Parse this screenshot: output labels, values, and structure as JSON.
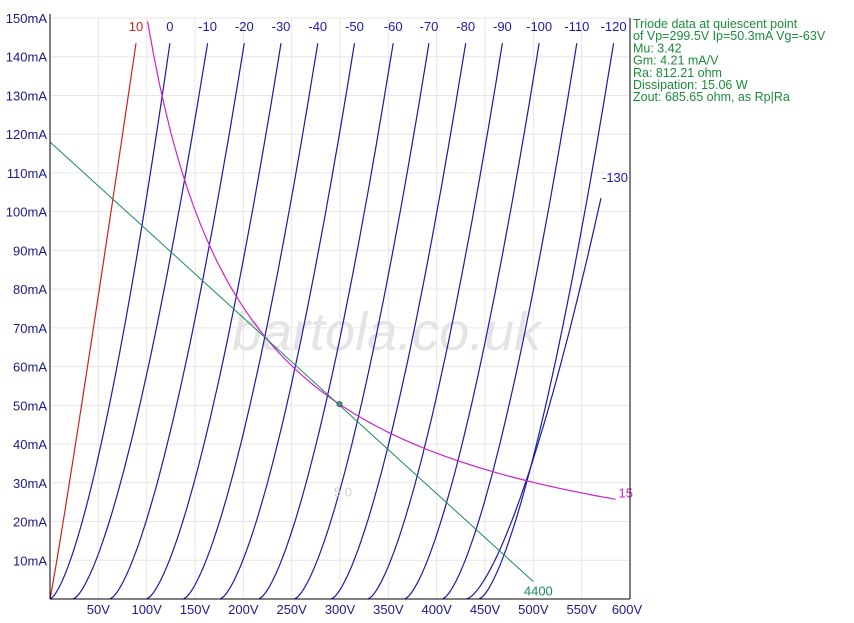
{
  "chart_data": {
    "type": "line",
    "xlabel": "",
    "ylabel": "",
    "xlim": [
      0,
      600
    ],
    "ylim": [
      0,
      150
    ],
    "grid": true,
    "x_ticks": [
      {
        "v": 50,
        "label": "50V"
      },
      {
        "v": 100,
        "label": "100V"
      },
      {
        "v": 150,
        "label": "150V"
      },
      {
        "v": 200,
        "label": "200V"
      },
      {
        "v": 250,
        "label": "250V"
      },
      {
        "v": 300,
        "label": "300V"
      },
      {
        "v": 350,
        "label": "350V"
      },
      {
        "v": 400,
        "label": "400V"
      },
      {
        "v": 450,
        "label": "450V"
      },
      {
        "v": 500,
        "label": "500V"
      },
      {
        "v": 550,
        "label": "550V"
      },
      {
        "v": 600,
        "label": "600V"
      }
    ],
    "y_ticks": [
      {
        "v": 10,
        "label": "10mA"
      },
      {
        "v": 20,
        "label": "20mA"
      },
      {
        "v": 30,
        "label": "30mA"
      },
      {
        "v": 40,
        "label": "40mA"
      },
      {
        "v": 50,
        "label": "50mA"
      },
      {
        "v": 60,
        "label": "60mA"
      },
      {
        "v": 70,
        "label": "70mA"
      },
      {
        "v": 80,
        "label": "80mA"
      },
      {
        "v": 90,
        "label": "90mA"
      },
      {
        "v": 100,
        "label": "100mA"
      },
      {
        "v": 110,
        "label": "110mA"
      },
      {
        "v": 120,
        "label": "120mA"
      },
      {
        "v": 130,
        "label": "130mA"
      },
      {
        "v": 140,
        "label": "140mA"
      },
      {
        "v": 150,
        "label": "150mA"
      }
    ],
    "grid_curves": [
      {
        "label": "10",
        "color": "#cc2222",
        "top_ip": 143.5,
        "top_vp": 89
      },
      {
        "label": "0",
        "color": "#1a1aa8",
        "top_ip": 143.5,
        "top_vp": 124
      },
      {
        "label": "-10",
        "color": "#1a1aa8",
        "top_ip": 143.5,
        "top_vp": 163
      },
      {
        "label": "-20",
        "color": "#1a1aa8",
        "top_ip": 143.5,
        "top_vp": 201
      },
      {
        "label": "-30",
        "color": "#1a1aa8",
        "top_ip": 143.5,
        "top_vp": 239
      },
      {
        "label": "-40",
        "color": "#1a1aa8",
        "top_ip": 143.5,
        "top_vp": 277
      },
      {
        "label": "-50",
        "color": "#1a1aa8",
        "top_ip": 143.5,
        "top_vp": 315
      },
      {
        "label": "-60",
        "color": "#1a1aa8",
        "top_ip": 143.5,
        "top_vp": 355
      },
      {
        "label": "-70",
        "color": "#1a1aa8",
        "top_ip": 143.5,
        "top_vp": 392
      },
      {
        "label": "-80",
        "color": "#1a1aa8",
        "top_ip": 143.5,
        "top_vp": 430
      },
      {
        "label": "-90",
        "color": "#1a1aa8",
        "top_ip": 143.5,
        "top_vp": 468
      },
      {
        "label": "-100",
        "color": "#1a1aa8",
        "top_ip": 143.5,
        "top_vp": 506
      },
      {
        "label": "-110",
        "color": "#1a1aa8",
        "top_ip": 143.5,
        "top_vp": 545
      },
      {
        "label": "-120",
        "color": "#1a1aa8",
        "top_ip": 143.5,
        "top_vp": 583
      },
      {
        "label": "-130",
        "color": "#1a1aa8",
        "top_ip": 103.5,
        "top_vp": 570
      }
    ],
    "max_dissipation": {
      "label": "15",
      "color": "#cc22cc",
      "watts": 15.06,
      "x_range": [
        101,
        585
      ]
    },
    "load_line": {
      "label": "4400",
      "color": "#1a8c5a",
      "points": [
        [
          0,
          118
        ],
        [
          500,
          4.5
        ]
      ]
    },
    "load_line_secondary_label": "5 0",
    "quiescent_point": {
      "vp": 299.5,
      "ip": 50.3
    },
    "info_lines": [
      "Triode data at quiescent point",
      "of Vp=299.5V Ip=50.3mA Vg=-63V",
      "Mu: 3.42",
      "Gm: 4.21 mA/V",
      "Ra: 812.21 ohm",
      "Dissipation: 15.06 W",
      "Zout: 685.65 ohm, as Rp|Ra"
    ]
  },
  "watermark": "bartola.co.uk",
  "colors": {
    "axis": "#000000",
    "grid": "#e6e6e6",
    "tick_text": "#1a1a8c",
    "info_text": "#1a8c3a"
  }
}
